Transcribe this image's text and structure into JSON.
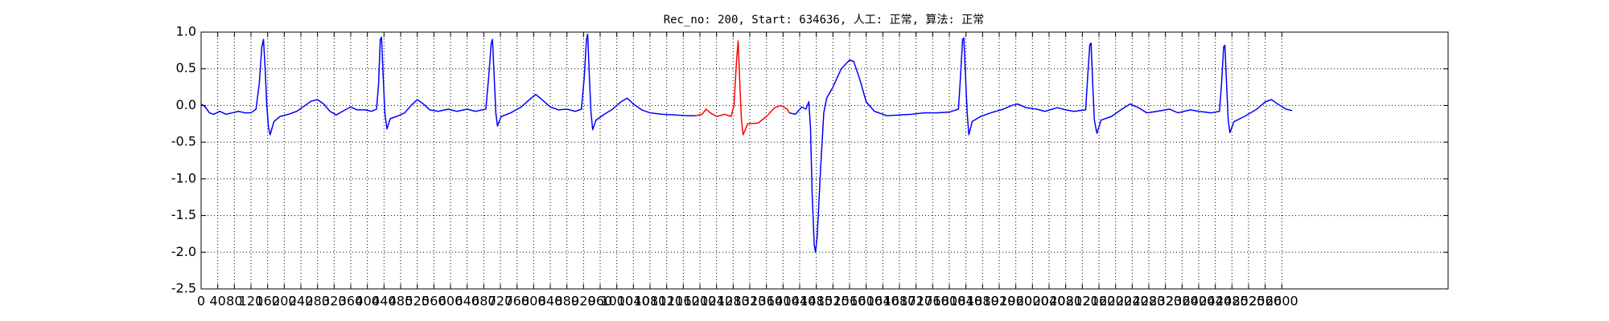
{
  "chart_data": {
    "type": "line",
    "title": "Rec_no: 200, Start: 634636, 人工: 正常, 算法: 正常",
    "xlim": [
      0,
      3000
    ],
    "xticks": [
      0,
      40,
      80,
      120,
      160,
      200,
      240,
      280,
      320,
      360,
      400,
      440,
      480,
      520,
      560,
      600,
      640,
      680,
      720,
      760,
      800,
      840,
      880,
      920,
      960,
      1000,
      1040,
      1080,
      1120,
      1160,
      1200,
      1240,
      1280,
      1320,
      1360,
      1400,
      1440,
      1480,
      1520,
      1560,
      1600,
      1640,
      1680,
      1720,
      1760,
      1800,
      1840,
      1880,
      1920,
      1960,
      2000,
      2040,
      2080,
      2120,
      2160,
      2200,
      2240,
      2280,
      2320,
      2360,
      2400,
      2440,
      2480,
      2520,
      2560,
      2600
    ],
    "ylim": [
      -2.5,
      1.0
    ],
    "yticks": [
      {
        "value": -2.5,
        "label": "-2.5"
      },
      {
        "value": -2,
        "label": "-2.0"
      },
      -1.5,
      {
        "value": -1,
        "label": "-1.0"
      },
      -0.5,
      {
        "value": 0,
        "label": "0.0"
      },
      0.5,
      {
        "value": 1,
        "label": "1.0"
      }
    ],
    "grid": true,
    "series": [
      {
        "color": "#0000ff",
        "x": [
          0,
          10,
          20,
          30,
          45,
          60,
          75,
          90,
          105,
          120,
          132,
          140,
          146,
          150,
          154,
          158,
          162,
          166,
          175,
          190,
          210,
          230,
          250,
          265,
          280,
          295,
          310,
          325,
          340,
          360,
          375,
          395,
          410,
          422,
          427,
          431,
          434,
          438,
          442,
          447,
          455,
          470,
          490,
          505,
          520,
          535,
          550,
          570,
          595,
          615,
          640,
          660,
          685,
          692,
          698,
          701,
          705,
          709,
          713,
          722,
          745,
          770,
          790,
          805,
          820,
          840,
          860,
          880,
          900,
          915,
          922,
          927,
          930,
          934,
          938,
          942,
          950,
          970,
          990,
          1010,
          1025,
          1040,
          1060,
          1080,
          1110,
          1140,
          1170,
          1190
        ],
        "values": [
          0.02,
          -0.02,
          -0.1,
          -0.12,
          -0.08,
          -0.12,
          -0.1,
          -0.08,
          -0.1,
          -0.1,
          -0.05,
          0.3,
          0.8,
          0.9,
          0.5,
          0,
          -0.3,
          -0.4,
          -0.22,
          -0.15,
          -0.12,
          -0.08,
          0.0,
          0.06,
          0.08,
          0.02,
          -0.08,
          -0.13,
          -0.08,
          -0.02,
          -0.06,
          -0.06,
          -0.08,
          -0.05,
          0.3,
          0.9,
          0.93,
          0.4,
          -0.1,
          -0.32,
          -0.18,
          -0.15,
          -0.1,
          0.0,
          0.08,
          0.02,
          -0.06,
          -0.08,
          -0.05,
          -0.08,
          -0.05,
          -0.08,
          -0.05,
          0.4,
          0.85,
          0.9,
          0.4,
          -0.1,
          -0.28,
          -0.15,
          -0.1,
          -0.02,
          0.08,
          0.15,
          0.08,
          -0.02,
          -0.06,
          -0.05,
          -0.08,
          -0.05,
          0.4,
          0.9,
          0.97,
          0.4,
          -0.1,
          -0.33,
          -0.2,
          -0.12,
          -0.05,
          0.05,
          0.1,
          0.02,
          -0.06,
          -0.1,
          -0.12,
          -0.13,
          -0.14,
          -0.14
        ]
      },
      {
        "color": "#ff0000",
        "x": [
          1190,
          1205,
          1215,
          1225,
          1240,
          1260,
          1275,
          1282,
          1288,
          1292,
          1296,
          1300,
          1304,
          1315,
          1340,
          1360,
          1380,
          1395,
          1410,
          1415
        ],
        "values": [
          -0.14,
          -0.12,
          -0.05,
          -0.1,
          -0.15,
          -0.12,
          -0.15,
          0.0,
          0.6,
          0.88,
          0.3,
          -0.2,
          -0.4,
          -0.25,
          -0.24,
          -0.15,
          -0.03,
          0.0,
          -0.05,
          -0.1
        ]
      },
      {
        "color": "#0000ff",
        "x": [
          1415,
          1430,
          1445,
          1455,
          1462,
          1466,
          1470,
          1475,
          1478,
          1482,
          1490,
          1498,
          1505,
          1520,
          1540,
          1560,
          1570,
          1585,
          1600,
          1620,
          1650,
          1680,
          1710,
          1740,
          1770,
          1800,
          1822,
          1827,
          1832,
          1835,
          1839,
          1843,
          1847,
          1855,
          1875,
          1900,
          1930,
          1950,
          1965,
          1985,
          2010,
          2030,
          2060,
          2080,
          2100,
          2128,
          2133,
          2138,
          2141,
          2145,
          2149,
          2155,
          2165,
          2190,
          2215,
          2235,
          2255,
          2275,
          2300,
          2330,
          2350,
          2380,
          2400,
          2430,
          2450,
          2455,
          2460,
          2463,
          2467,
          2471,
          2475,
          2485,
          2510,
          2540,
          2560,
          2575,
          2590,
          2610,
          2625
        ],
        "values": [
          -0.1,
          -0.12,
          -0.02,
          -0.05,
          0.05,
          -0.3,
          -1.2,
          -1.9,
          -2.0,
          -1.8,
          -0.9,
          -0.1,
          0.1,
          0.25,
          0.5,
          0.62,
          0.6,
          0.35,
          0.05,
          -0.08,
          -0.14,
          -0.13,
          -0.12,
          -0.1,
          -0.1,
          -0.09,
          -0.05,
          0.4,
          0.9,
          0.92,
          0.4,
          -0.1,
          -0.4,
          -0.22,
          -0.15,
          -0.1,
          -0.05,
          0.0,
          0.02,
          -0.03,
          -0.05,
          -0.08,
          -0.03,
          -0.06,
          -0.08,
          -0.06,
          0.4,
          0.83,
          0.85,
          0.3,
          -0.2,
          -0.38,
          -0.2,
          -0.15,
          -0.05,
          0.02,
          -0.03,
          -0.1,
          -0.08,
          -0.05,
          -0.1,
          -0.06,
          -0.08,
          -0.1,
          -0.08,
          0.3,
          0.8,
          0.82,
          0.3,
          -0.2,
          -0.37,
          -0.22,
          -0.15,
          -0.05,
          0.05,
          0.08,
          0.02,
          -0.05,
          -0.07
        ]
      }
    ]
  }
}
